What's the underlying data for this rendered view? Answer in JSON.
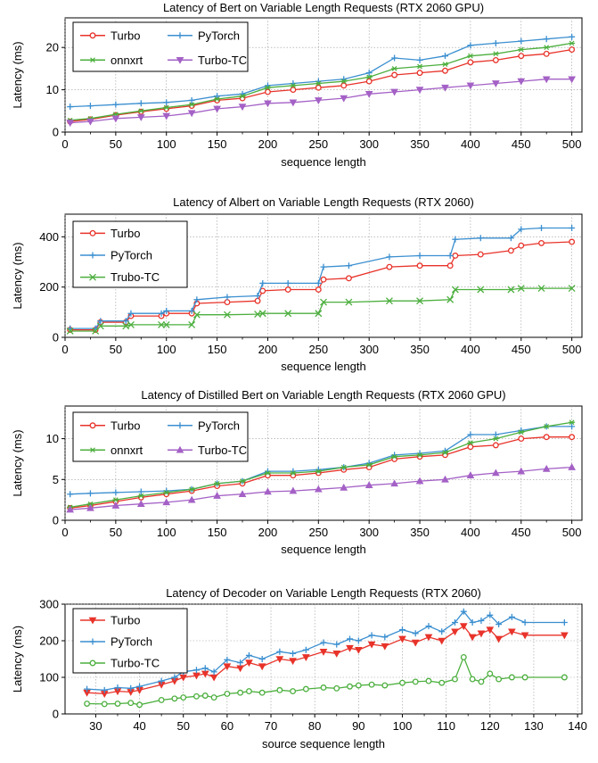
{
  "colors": {
    "turbo": "#e8332a",
    "pytorch": "#3b8fd0",
    "onnxrt": "#4caf3e",
    "turbo_tc": "#a461c6",
    "grid": "#9a9a9a"
  },
  "chart_data": [
    {
      "type": "line",
      "title": "Latency of Bert on Variable Length Requests (RTX 2060 GPU)",
      "xlabel": "sequence length",
      "ylabel": "Latency (ms)",
      "xlim": [
        0,
        510
      ],
      "ylim": [
        0,
        27
      ],
      "xticks": [
        0,
        50,
        100,
        150,
        200,
        250,
        300,
        350,
        400,
        450,
        500
      ],
      "yticks": [
        0,
        10,
        20
      ],
      "grid": true,
      "legend_position": "top-left",
      "legend_columns": 2,
      "series": [
        {
          "name": "Turbo",
          "color": "#e8332a",
          "marker": "circle",
          "x": [
            5,
            25,
            50,
            75,
            100,
            125,
            150,
            175,
            200,
            225,
            250,
            275,
            300,
            325,
            350,
            375,
            400,
            425,
            450,
            475,
            500
          ],
          "y": [
            2.5,
            3.0,
            4.0,
            4.8,
            5.5,
            6.2,
            7.5,
            8.0,
            9.5,
            10.0,
            10.5,
            11.0,
            12.0,
            13.5,
            14.0,
            14.5,
            16.5,
            17.0,
            18.0,
            18.5,
            19.5
          ]
        },
        {
          "name": "PyTorch",
          "color": "#3b8fd0",
          "marker": "plus",
          "x": [
            5,
            25,
            50,
            75,
            100,
            125,
            150,
            175,
            200,
            225,
            250,
            275,
            300,
            325,
            350,
            375,
            400,
            425,
            450,
            475,
            500
          ],
          "y": [
            6.0,
            6.2,
            6.5,
            6.8,
            7.0,
            7.5,
            8.5,
            9.0,
            11.0,
            11.5,
            12.0,
            12.5,
            14.0,
            17.5,
            17.0,
            18.0,
            20.5,
            21.0,
            21.5,
            22.0,
            22.5
          ]
        },
        {
          "name": "onnxrt",
          "color": "#4caf3e",
          "marker": "asterisk",
          "x": [
            5,
            25,
            50,
            75,
            100,
            125,
            150,
            175,
            200,
            225,
            250,
            275,
            300,
            325,
            350,
            375,
            400,
            425,
            450,
            475,
            500
          ],
          "y": [
            2.8,
            3.2,
            4.2,
            5.0,
            5.8,
            6.5,
            7.8,
            8.5,
            10.5,
            11.0,
            11.5,
            12.0,
            13.0,
            15.0,
            15.5,
            16.0,
            18.0,
            18.5,
            19.5,
            20.0,
            21.0
          ]
        },
        {
          "name": "Turbo-TC",
          "color": "#a461c6",
          "marker": "triangle-down",
          "x": [
            5,
            25,
            50,
            75,
            100,
            125,
            150,
            175,
            200,
            225,
            250,
            275,
            300,
            325,
            350,
            375,
            400,
            425,
            450,
            475,
            500
          ],
          "y": [
            2.2,
            2.5,
            3.2,
            3.5,
            3.8,
            4.5,
            5.5,
            6.0,
            6.8,
            7.0,
            7.5,
            8.0,
            9.0,
            9.5,
            10.0,
            10.5,
            11.0,
            11.5,
            12.0,
            12.5,
            12.5
          ]
        }
      ]
    },
    {
      "type": "line",
      "title": "Latency of Albert on Variable Length Requests (RTX 2060)",
      "xlabel": "sequence length",
      "ylabel": "Latency (ms)",
      "xlim": [
        0,
        510
      ],
      "ylim": [
        0,
        490
      ],
      "xticks": [
        0,
        50,
        100,
        150,
        200,
        250,
        300,
        350,
        400,
        450,
        500
      ],
      "yticks": [
        0,
        200,
        400
      ],
      "grid": true,
      "legend_position": "top-left",
      "legend_columns": 1,
      "series": [
        {
          "name": "Turbo",
          "color": "#e8332a",
          "marker": "circle",
          "x": [
            5,
            30,
            35,
            60,
            65,
            95,
            100,
            125,
            130,
            160,
            190,
            195,
            220,
            250,
            255,
            280,
            320,
            350,
            380,
            385,
            410,
            440,
            450,
            470,
            500
          ],
          "y": [
            30,
            30,
            60,
            60,
            85,
            85,
            95,
            95,
            135,
            140,
            145,
            185,
            190,
            190,
            230,
            235,
            280,
            285,
            285,
            325,
            330,
            345,
            365,
            375,
            380
          ]
        },
        {
          "name": "PyTorch",
          "color": "#3b8fd0",
          "marker": "plus",
          "x": [
            5,
            30,
            35,
            60,
            65,
            95,
            100,
            125,
            130,
            160,
            190,
            195,
            220,
            250,
            255,
            280,
            320,
            350,
            380,
            385,
            410,
            440,
            450,
            470,
            500
          ],
          "y": [
            35,
            35,
            65,
            65,
            95,
            95,
            105,
            105,
            150,
            160,
            165,
            215,
            215,
            215,
            280,
            285,
            320,
            325,
            325,
            390,
            395,
            395,
            430,
            435,
            435
          ]
        },
        {
          "name": "Trubo-TC",
          "color": "#4caf3e",
          "marker": "cross",
          "x": [
            5,
            30,
            35,
            60,
            65,
            95,
            100,
            125,
            130,
            160,
            190,
            195,
            220,
            250,
            255,
            280,
            320,
            350,
            380,
            385,
            410,
            440,
            450,
            470,
            500
          ],
          "y": [
            25,
            25,
            45,
            45,
            50,
            50,
            50,
            50,
            90,
            90,
            92,
            95,
            95,
            95,
            140,
            140,
            145,
            145,
            150,
            190,
            190,
            190,
            195,
            195,
            195
          ]
        }
      ]
    },
    {
      "type": "line",
      "title": "Latency of Distilled Bert on Variable Length Requests (RTX 2060 GPU)",
      "xlabel": "sequence length",
      "ylabel": "Latency (ms)",
      "xlim": [
        0,
        510
      ],
      "ylim": [
        0,
        14
      ],
      "xticks": [
        0,
        50,
        100,
        150,
        200,
        250,
        300,
        350,
        400,
        450,
        500
      ],
      "yticks": [
        0,
        5,
        10
      ],
      "grid": true,
      "legend_position": "top-left",
      "legend_columns": 2,
      "series": [
        {
          "name": "Turbo",
          "color": "#e8332a",
          "marker": "circle",
          "x": [
            5,
            25,
            50,
            75,
            100,
            125,
            150,
            175,
            200,
            225,
            250,
            275,
            300,
            325,
            350,
            375,
            400,
            425,
            450,
            475,
            500
          ],
          "y": [
            1.5,
            1.8,
            2.3,
            2.8,
            3.2,
            3.6,
            4.2,
            4.5,
            5.5,
            5.5,
            5.8,
            6.2,
            6.5,
            7.5,
            7.8,
            8.0,
            9.0,
            9.2,
            10.0,
            10.2,
            10.2
          ]
        },
        {
          "name": "PyTorch",
          "color": "#3b8fd0",
          "marker": "plus",
          "x": [
            5,
            25,
            50,
            75,
            100,
            125,
            150,
            175,
            200,
            225,
            250,
            275,
            300,
            325,
            350,
            375,
            400,
            425,
            450,
            475,
            500
          ],
          "y": [
            3.2,
            3.3,
            3.4,
            3.5,
            3.6,
            3.8,
            4.5,
            4.8,
            6.0,
            6.0,
            6.2,
            6.5,
            7.0,
            8.0,
            8.2,
            8.5,
            10.5,
            10.5,
            11.0,
            11.5,
            11.5
          ]
        },
        {
          "name": "onnxrt",
          "color": "#4caf3e",
          "marker": "asterisk",
          "x": [
            5,
            25,
            50,
            75,
            100,
            125,
            150,
            175,
            200,
            225,
            250,
            275,
            300,
            325,
            350,
            375,
            400,
            425,
            450,
            475,
            500
          ],
          "y": [
            1.6,
            2.0,
            2.5,
            3.0,
            3.4,
            3.8,
            4.5,
            4.8,
            5.8,
            5.8,
            6.0,
            6.5,
            6.8,
            7.8,
            8.0,
            8.3,
            9.5,
            10.0,
            10.8,
            11.5,
            12.0
          ]
        },
        {
          "name": "Turbo-TC",
          "color": "#a461c6",
          "marker": "triangle-up",
          "x": [
            5,
            25,
            50,
            75,
            100,
            125,
            150,
            175,
            200,
            225,
            250,
            275,
            300,
            325,
            350,
            375,
            400,
            425,
            450,
            475,
            500
          ],
          "y": [
            1.3,
            1.5,
            1.8,
            2.0,
            2.2,
            2.5,
            3.0,
            3.2,
            3.5,
            3.6,
            3.8,
            4.0,
            4.3,
            4.5,
            4.8,
            5.0,
            5.5,
            5.8,
            6.0,
            6.3,
            6.5
          ]
        }
      ]
    },
    {
      "type": "line",
      "title": "Latency of Decoder on Variable Length Requests (RTX 2060)",
      "xlabel": "source sequence length",
      "ylabel": "Latency (ms)",
      "xlim": [
        23,
        141
      ],
      "ylim": [
        0,
        300
      ],
      "xticks": [
        30,
        40,
        50,
        60,
        70,
        80,
        90,
        100,
        110,
        120,
        130,
        140
      ],
      "yticks": [
        0,
        100,
        200,
        300
      ],
      "grid": true,
      "legend_position": "top-left",
      "legend_columns": 1,
      "series": [
        {
          "name": "Turbo",
          "color": "#e8332a",
          "marker": "triangle-down",
          "x": [
            28,
            32,
            35,
            38,
            40,
            45,
            48,
            50,
            53,
            55,
            57,
            60,
            63,
            65,
            68,
            72,
            75,
            78,
            82,
            85,
            88,
            90,
            93,
            96,
            100,
            103,
            106,
            109,
            112,
            114,
            116,
            118,
            120,
            122,
            125,
            128,
            137
          ],
          "y": [
            58,
            55,
            62,
            60,
            65,
            80,
            90,
            100,
            105,
            110,
            100,
            130,
            125,
            140,
            130,
            150,
            145,
            155,
            170,
            165,
            180,
            175,
            190,
            185,
            205,
            195,
            210,
            200,
            225,
            240,
            210,
            220,
            230,
            205,
            225,
            215,
            215
          ]
        },
        {
          "name": "PyTorch",
          "color": "#3b8fd0",
          "marker": "plus",
          "x": [
            28,
            32,
            35,
            38,
            40,
            45,
            48,
            50,
            53,
            55,
            57,
            60,
            63,
            65,
            68,
            72,
            75,
            78,
            82,
            85,
            88,
            90,
            93,
            96,
            100,
            103,
            106,
            109,
            112,
            114,
            116,
            118,
            120,
            122,
            125,
            128,
            137
          ],
          "y": [
            68,
            65,
            72,
            70,
            75,
            90,
            100,
            115,
            120,
            125,
            115,
            148,
            140,
            160,
            150,
            170,
            165,
            175,
            195,
            190,
            205,
            200,
            215,
            210,
            230,
            220,
            240,
            225,
            250,
            280,
            250,
            255,
            270,
            245,
            265,
            250,
            250
          ]
        },
        {
          "name": "Turbo-TC",
          "color": "#4caf3e",
          "marker": "circle",
          "x": [
            28,
            32,
            35,
            38,
            40,
            45,
            48,
            50,
            53,
            55,
            57,
            60,
            63,
            65,
            68,
            72,
            75,
            78,
            82,
            85,
            88,
            90,
            93,
            96,
            100,
            103,
            106,
            109,
            112,
            114,
            116,
            118,
            120,
            122,
            125,
            128,
            137
          ],
          "y": [
            28,
            27,
            28,
            30,
            25,
            38,
            42,
            45,
            48,
            50,
            45,
            55,
            58,
            62,
            58,
            65,
            62,
            68,
            72,
            70,
            75,
            78,
            80,
            78,
            85,
            88,
            90,
            85,
            95,
            155,
            95,
            88,
            110,
            95,
            100,
            100,
            100
          ]
        }
      ]
    }
  ]
}
